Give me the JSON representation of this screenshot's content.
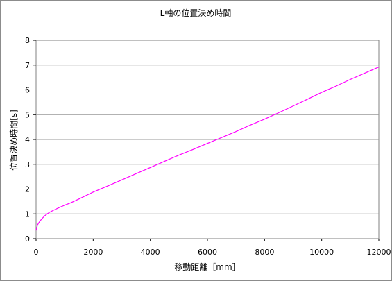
{
  "chart_data": {
    "type": "line",
    "title": "L軸の位置決め時間",
    "xlabel": "移動距離［mm］",
    "ylabel": "位置決め時間[s]",
    "xlim": [
      0,
      12000
    ],
    "ylim": [
      0,
      8
    ],
    "xticks": [
      0,
      2000,
      4000,
      6000,
      8000,
      10000,
      12000
    ],
    "yticks": [
      0,
      1,
      2,
      3,
      4,
      5,
      6,
      7,
      8
    ],
    "grid": "horizontal",
    "legend": "none",
    "series": [
      {
        "color": "#ff00ff",
        "x": [
          0,
          50,
          100,
          200,
          300,
          400,
          500,
          600,
          800,
          1000,
          1200,
          1500,
          2000,
          2500,
          3000,
          3500,
          4000,
          4500,
          5000,
          5500,
          6000,
          6500,
          7000,
          7500,
          8000,
          8500,
          9000,
          9500,
          10000,
          10500,
          11000,
          11500,
          12000
        ],
        "y": [
          0.33,
          0.55,
          0.65,
          0.8,
          0.92,
          1.01,
          1.08,
          1.14,
          1.25,
          1.35,
          1.44,
          1.6,
          1.88,
          2.12,
          2.37,
          2.62,
          2.87,
          3.12,
          3.37,
          3.6,
          3.84,
          4.08,
          4.32,
          4.58,
          4.82,
          5.08,
          5.35,
          5.62,
          5.9,
          6.15,
          6.42,
          6.67,
          6.92
        ]
      }
    ]
  }
}
